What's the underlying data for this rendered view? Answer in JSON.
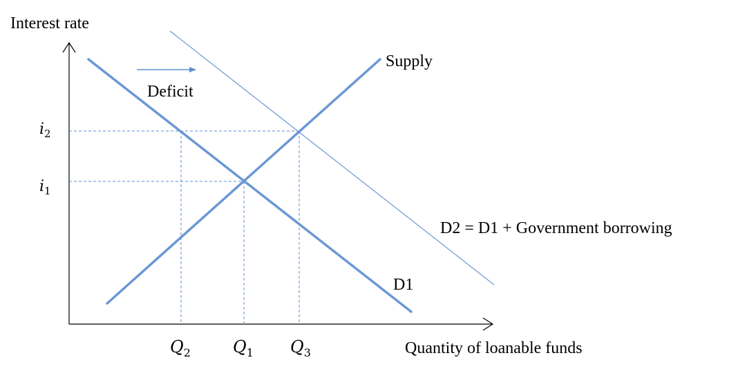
{
  "axes": {
    "y_label": "Interest rate",
    "x_label": "Quantity of loanable funds"
  },
  "curves": {
    "supply_label": "Supply",
    "d1_label": "D1",
    "d2_label": "D2 = D1 + Government borrowing"
  },
  "shift": {
    "label": "Deficit"
  },
  "rates": {
    "i2": {
      "symbol": "i",
      "sub": "2"
    },
    "i1": {
      "symbol": "i",
      "sub": "1"
    }
  },
  "quantities": {
    "q2": {
      "symbol": "Q",
      "sub": "2"
    },
    "q1": {
      "symbol": "Q",
      "sub": "1"
    },
    "q3": {
      "symbol": "Q",
      "sub": "3"
    }
  },
  "colors": {
    "curve": "#6b97d4",
    "guide": "#5b8fd0",
    "axis": "#000000"
  }
}
